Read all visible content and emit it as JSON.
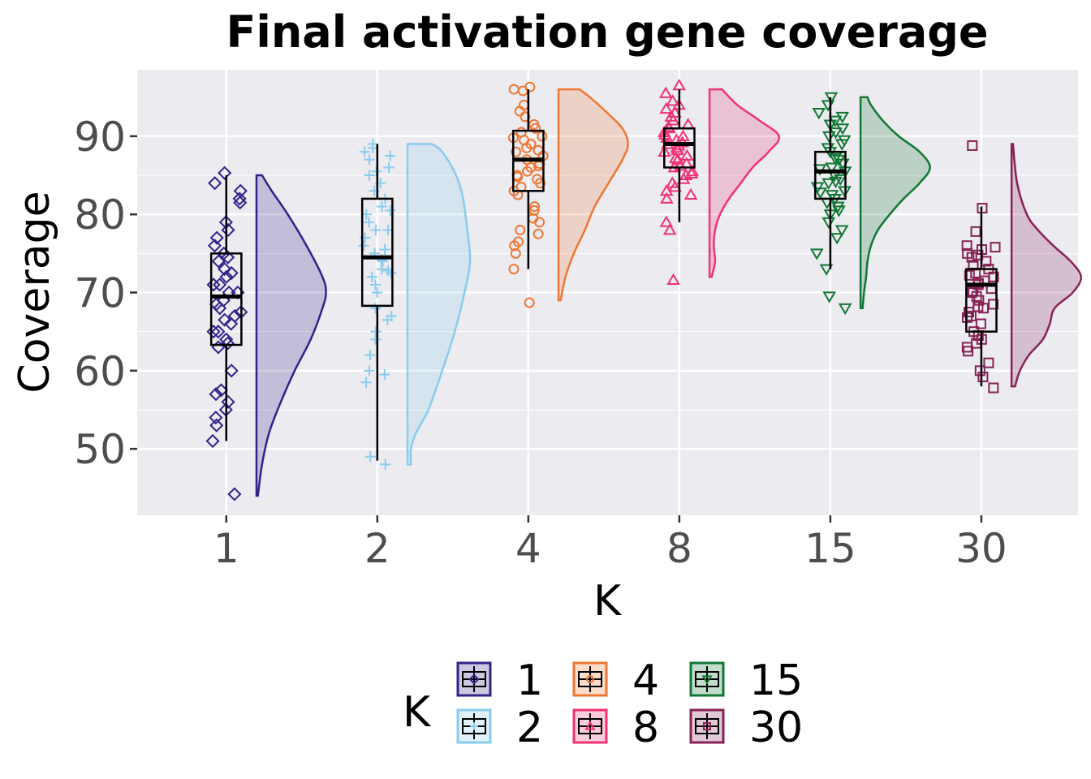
{
  "chart_data": {
    "type": "raincloud",
    "title": "Final activation gene coverage",
    "xlabel": "K",
    "ylabel": "Coverage",
    "ylim": [
      41.5,
      98.5
    ],
    "yticks": [
      50,
      60,
      70,
      80,
      90
    ],
    "categories": [
      "1",
      "2",
      "4",
      "8",
      "15",
      "30"
    ],
    "grid": true,
    "legend": {
      "title": "K",
      "position": "bottom",
      "entries": [
        "1",
        "2",
        "4",
        "8",
        "15",
        "30"
      ]
    },
    "series": [
      {
        "name": "1",
        "color": "#332288",
        "marker": "diamond",
        "box": {
          "whisker_low": 51,
          "q1": 63.3,
          "median": 69.5,
          "q3": 75,
          "whisker_high": 85
        },
        "density": [
          [
            44,
            0.02
          ],
          [
            48,
            0.08
          ],
          [
            52,
            0.18
          ],
          [
            56,
            0.35
          ],
          [
            60,
            0.55
          ],
          [
            64,
            0.78
          ],
          [
            68,
            0.95
          ],
          [
            70,
            1
          ],
          [
            72,
            0.95
          ],
          [
            76,
            0.72
          ],
          [
            80,
            0.45
          ],
          [
            83,
            0.22
          ],
          [
            85,
            0.08
          ]
        ],
        "points": [
          79,
          78,
          76,
          74,
          73,
          72,
          71,
          70,
          70,
          69,
          68,
          67,
          66,
          65,
          64,
          63,
          60,
          57,
          56,
          55,
          53,
          51,
          82,
          83,
          84,
          85.3,
          81.5,
          77,
          75,
          74.5,
          72.5,
          71,
          68.5,
          67.5,
          66.5,
          65,
          63.5,
          57.5,
          54,
          44.2
        ]
      },
      {
        "name": "2",
        "color": "#88CCEE",
        "marker": "plus",
        "box": {
          "whisker_low": 48.5,
          "q1": 68.3,
          "median": 74.5,
          "q3": 82,
          "whisker_high": 89
        },
        "density": [
          [
            48,
            0.05
          ],
          [
            50,
            0.05
          ],
          [
            52,
            0.12
          ],
          [
            55,
            0.3
          ],
          [
            60,
            0.5
          ],
          [
            65,
            0.68
          ],
          [
            70,
            0.82
          ],
          [
            74,
            0.9
          ],
          [
            78,
            0.86
          ],
          [
            82,
            0.8
          ],
          [
            85,
            0.7
          ],
          [
            88,
            0.5
          ],
          [
            89,
            0.35
          ]
        ],
        "points": [
          89,
          88.5,
          88,
          87.5,
          87,
          86,
          85.5,
          85,
          84,
          83,
          82,
          81,
          80,
          79,
          78,
          77,
          76,
          75,
          74,
          73,
          72.5,
          72,
          71,
          70,
          68,
          66.5,
          65,
          64,
          62,
          60,
          59.5,
          58.5,
          49,
          48,
          72.8,
          67,
          80.5,
          78,
          75.5,
          74.2
        ]
      },
      {
        "name": "4",
        "color": "#EE7733",
        "marker": "circle",
        "box": {
          "whisker_low": 73,
          "q1": 83,
          "median": 87,
          "q3": 90.7,
          "whisker_high": 96
        },
        "density": [
          [
            69,
            0.03
          ],
          [
            72,
            0.1
          ],
          [
            75,
            0.22
          ],
          [
            78,
            0.38
          ],
          [
            81,
            0.52
          ],
          [
            84,
            0.72
          ],
          [
            87,
            0.92
          ],
          [
            89,
            1
          ],
          [
            91,
            0.92
          ],
          [
            93,
            0.7
          ],
          [
            95,
            0.45
          ],
          [
            96,
            0.3
          ]
        ],
        "points": [
          96.3,
          96,
          95.8,
          94,
          93.2,
          92.5,
          91.5,
          91,
          90.5,
          90,
          89.8,
          89.5,
          89,
          88.5,
          88,
          87.5,
          87,
          86.5,
          86,
          85.5,
          85,
          84.5,
          84,
          83.5,
          83,
          82.5,
          81,
          80.5,
          79.5,
          79,
          78,
          77.5,
          76.5,
          76,
          75,
          73,
          68.7,
          88.2,
          86.2,
          84.8
        ]
      },
      {
        "name": "8",
        "color": "#EE3377",
        "marker": "triangle",
        "box": {
          "whisker_low": 79,
          "q1": 86,
          "median": 89,
          "q3": 91,
          "whisker_high": 96
        },
        "density": [
          [
            72,
            0.03
          ],
          [
            74,
            0.08
          ],
          [
            76,
            0.06
          ],
          [
            78,
            0.08
          ],
          [
            80,
            0.15
          ],
          [
            82,
            0.28
          ],
          [
            84,
            0.45
          ],
          [
            86,
            0.62
          ],
          [
            88,
            0.85
          ],
          [
            90,
            1
          ],
          [
            92,
            0.72
          ],
          [
            94,
            0.4
          ],
          [
            96,
            0.18
          ]
        ],
        "points": [
          96.5,
          95.5,
          94.5,
          94,
          93.5,
          93,
          92.5,
          92,
          91.5,
          91.2,
          91,
          90.5,
          90,
          89.8,
          89.5,
          89,
          88.8,
          88.5,
          88,
          87.5,
          87,
          86.5,
          86,
          85.5,
          85,
          84.5,
          84,
          83.5,
          83,
          82.5,
          82,
          79,
          78,
          71.6,
          90.2,
          89.2,
          88.2,
          87.2,
          86.2,
          85.2
        ]
      },
      {
        "name": "15",
        "color": "#117733",
        "marker": "triangle-down",
        "box": {
          "whisker_low": 73,
          "q1": 82,
          "median": 85.5,
          "q3": 88,
          "whisker_high": 95
        },
        "density": [
          [
            68,
            0.03
          ],
          [
            70,
            0.05
          ],
          [
            72,
            0.08
          ],
          [
            74,
            0.1
          ],
          [
            76,
            0.15
          ],
          [
            78,
            0.25
          ],
          [
            80,
            0.42
          ],
          [
            82,
            0.62
          ],
          [
            84,
            0.85
          ],
          [
            86,
            1
          ],
          [
            88,
            0.85
          ],
          [
            90,
            0.55
          ],
          [
            92,
            0.32
          ],
          [
            94,
            0.15
          ],
          [
            95,
            0.1
          ]
        ],
        "points": [
          95,
          94,
          93,
          92.5,
          92,
          91.5,
          91,
          90.5,
          90,
          89.5,
          89,
          88.5,
          88,
          87.5,
          87,
          86.5,
          86,
          85.5,
          85,
          84.5,
          84,
          83.5,
          83,
          82.5,
          82,
          81.5,
          81,
          80.5,
          80,
          79,
          78,
          77,
          75,
          73,
          69.5,
          68,
          87.2,
          85.8,
          84.2,
          82.8
        ]
      },
      {
        "name": "30",
        "color": "#882255",
        "marker": "square",
        "box": {
          "whisker_low": 58,
          "q1": 65,
          "median": 71,
          "q3": 73,
          "whisker_high": 81
        },
        "density": [
          [
            58,
            0.05
          ],
          [
            60,
            0.12
          ],
          [
            62,
            0.25
          ],
          [
            64,
            0.45
          ],
          [
            66,
            0.55
          ],
          [
            68,
            0.62
          ],
          [
            70,
            0.88
          ],
          [
            72,
            1
          ],
          [
            74,
            0.85
          ],
          [
            76,
            0.6
          ],
          [
            78,
            0.38
          ],
          [
            80,
            0.22
          ],
          [
            84,
            0.08
          ],
          [
            89,
            0.02
          ]
        ],
        "points": [
          88.8,
          80.8,
          77.8,
          76,
          75.8,
          75.5,
          75,
          74.8,
          74.5,
          74,
          73.5,
          73,
          72.5,
          72,
          71.5,
          71,
          70.5,
          70,
          69.5,
          69,
          68.5,
          68,
          67.5,
          67,
          66,
          65,
          64.5,
          64,
          63.5,
          63,
          62.5,
          61,
          60,
          59.2,
          57.8,
          72.2,
          71.2,
          70.2,
          68.2,
          66.8
        ]
      }
    ]
  }
}
